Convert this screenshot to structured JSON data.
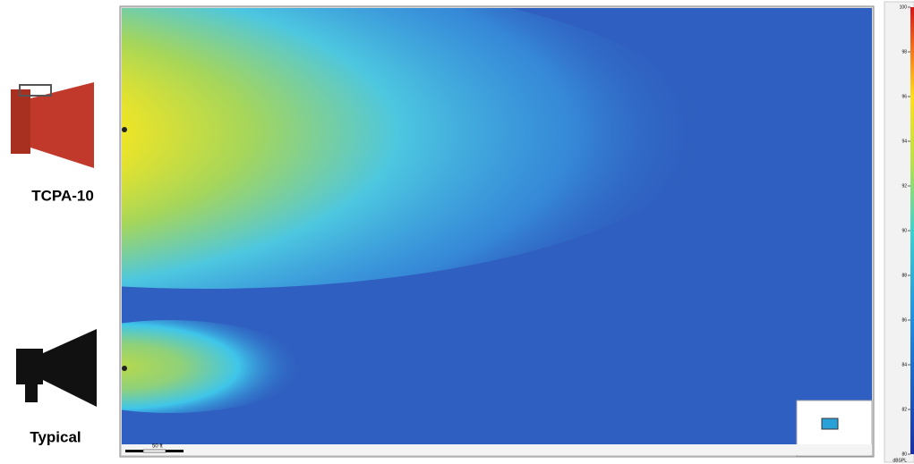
{
  "speakers": [
    {
      "label": "TCPA-10"
    },
    {
      "label": "Typical"
    }
  ],
  "scale_bar": {
    "label": "50 ft"
  },
  "colorbar": {
    "range": [
      80,
      100
    ],
    "ticks": [
      80,
      82,
      84,
      86,
      88,
      90,
      92,
      94,
      96,
      98,
      100
    ],
    "unit": "dBSPL"
  }
}
